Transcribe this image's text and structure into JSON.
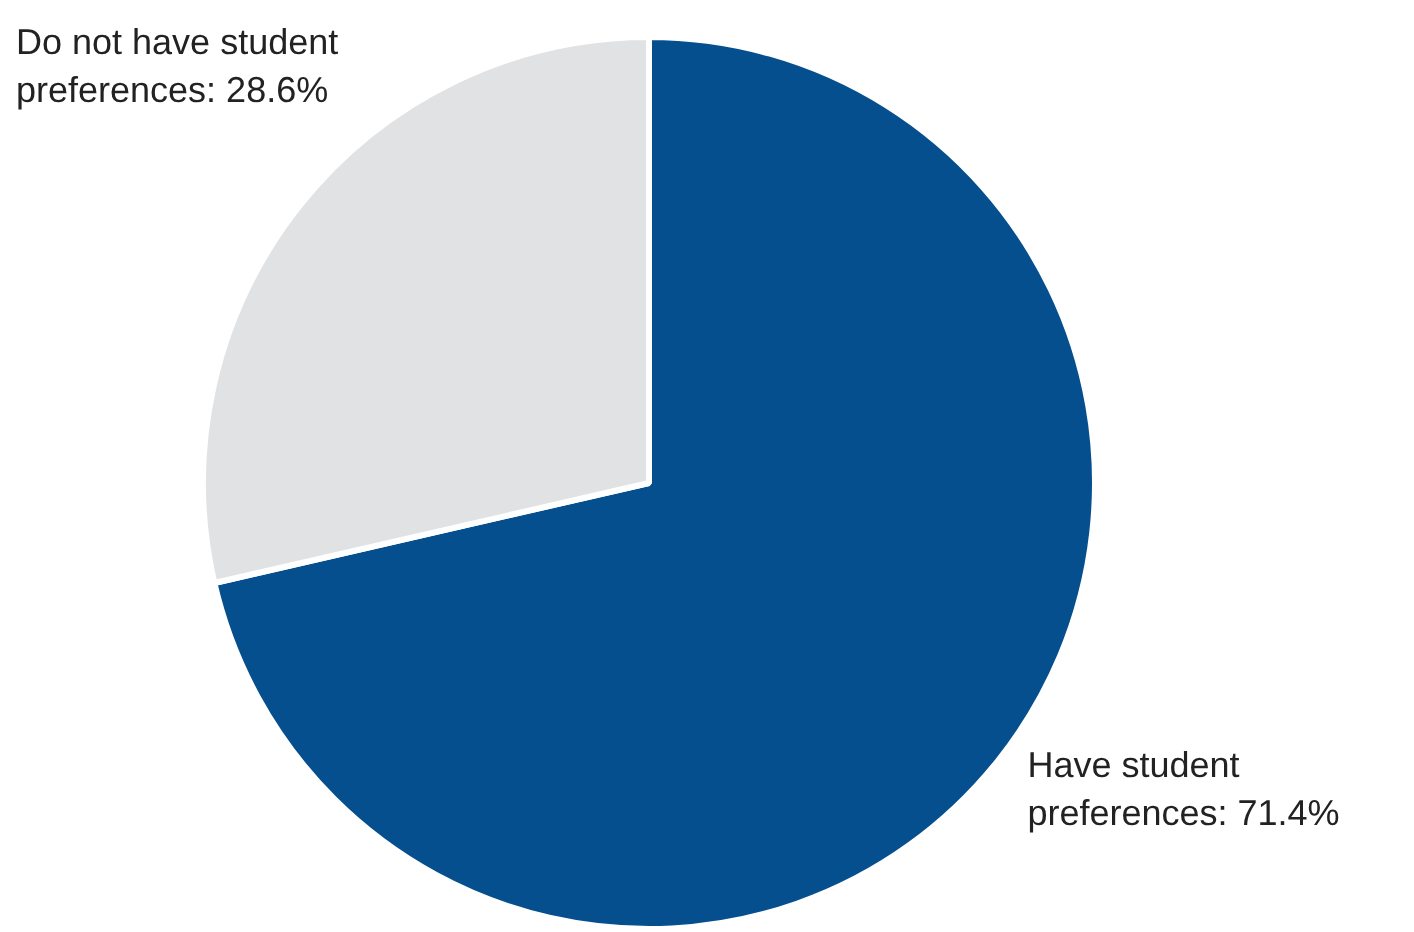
{
  "chart_data": {
    "type": "pie",
    "categories": [
      "Have student preferences: 71.4%",
      "Do not have student preferences: 28.6%"
    ],
    "values": [
      71.4,
      28.6
    ],
    "colors": [
      "#054f8f",
      "#e1e2e4"
    ]
  }
}
